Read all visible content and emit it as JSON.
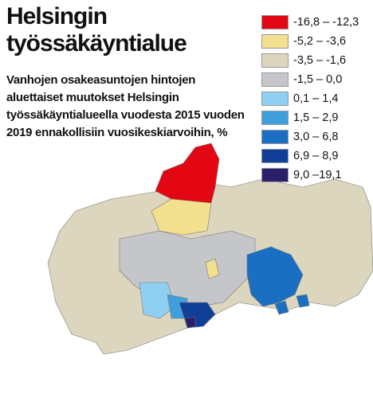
{
  "title": "Helsingin työssäkäyntialue",
  "subtitle": "Vanhojen osakeasuntojen hintojen aluettaiset muutokset Helsingin työssäkäyntialueella vuodesta 2015 vuoden 2019 ennakollisiin vuosikeskiarvoihin, %",
  "legend": {
    "items": [
      {
        "label": "-16,8 – -12,3",
        "color": "#e30613"
      },
      {
        "label": "-5,2 – -3,6",
        "color": "#f3e08e"
      },
      {
        "label": "-3,5 – -1,6",
        "color": "#ddd6be"
      },
      {
        "label": "-1,5 – 0,0",
        "color": "#c4c6c9"
      },
      {
        "label": "0,1 – 1,4",
        "color": "#8fd0f2"
      },
      {
        "label": "1,5 – 2,9",
        "color": "#3f9edc"
      },
      {
        "label": "3,0 – 6,8",
        "color": "#1b6fc2"
      },
      {
        "label": "6,9 – 8,9",
        "color": "#0f3f96"
      },
      {
        "label": "9,0 –19,1",
        "color": "#2a1f6b"
      }
    ]
  }
}
